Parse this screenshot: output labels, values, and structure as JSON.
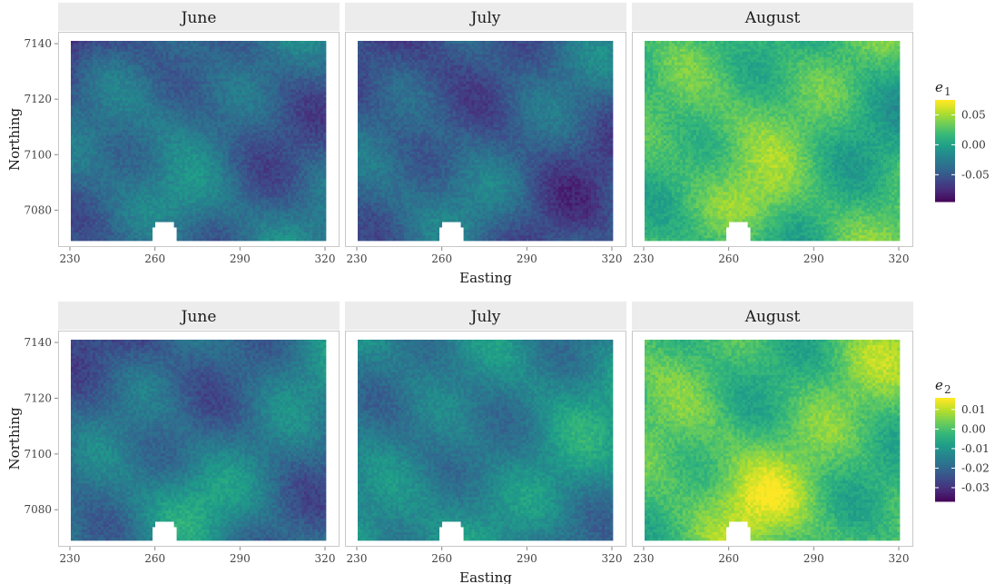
{
  "chart_data": [
    {
      "type": "heatmap",
      "facets": [
        "June",
        "July",
        "August"
      ],
      "xlabel": "Easting",
      "ylabel": "Northing",
      "xticks": [
        230,
        260,
        290,
        320
      ],
      "yticks": [
        7080,
        7100,
        7120,
        7140
      ],
      "xlim": [
        227,
        322
      ],
      "ylim": [
        7069,
        7141
      ],
      "legend": {
        "title": "e",
        "subscript": "1",
        "ticks": [
          "0.05",
          "0.00",
          "-0.05"
        ],
        "tick_values": [
          0.05,
          0.0,
          -0.05
        ],
        "range": [
          -0.095,
          0.075
        ],
        "placement": "right"
      },
      "mean_level": [
        0.35,
        0.3,
        0.68
      ],
      "colormap": "viridis"
    },
    {
      "type": "heatmap",
      "facets": [
        "June",
        "July",
        "August"
      ],
      "xlabel": "Easting",
      "ylabel": "Northing",
      "xticks": [
        230,
        260,
        290,
        320
      ],
      "yticks": [
        7080,
        7100,
        7120,
        7140
      ],
      "xlim": [
        227,
        322
      ],
      "ylim": [
        7069,
        7141
      ],
      "legend": {
        "title": "e",
        "subscript": "2",
        "ticks": [
          "0.01",
          "0.00",
          "-0.01",
          "-0.02",
          "-0.03"
        ],
        "tick_values": [
          0.01,
          0.0,
          -0.01,
          -0.02,
          -0.03
        ],
        "range": [
          -0.037,
          0.016
        ],
        "placement": "right"
      },
      "mean_level": [
        0.38,
        0.45,
        0.72
      ],
      "colormap": "viridis"
    }
  ],
  "colors": {
    "viridis": [
      "#440154",
      "#482878",
      "#3e4989",
      "#31688e",
      "#26828e",
      "#1f9e89",
      "#35b779",
      "#6ece58",
      "#b5de2b",
      "#fde725"
    ],
    "strip": "#ececec",
    "border": "#c8c8c8"
  }
}
